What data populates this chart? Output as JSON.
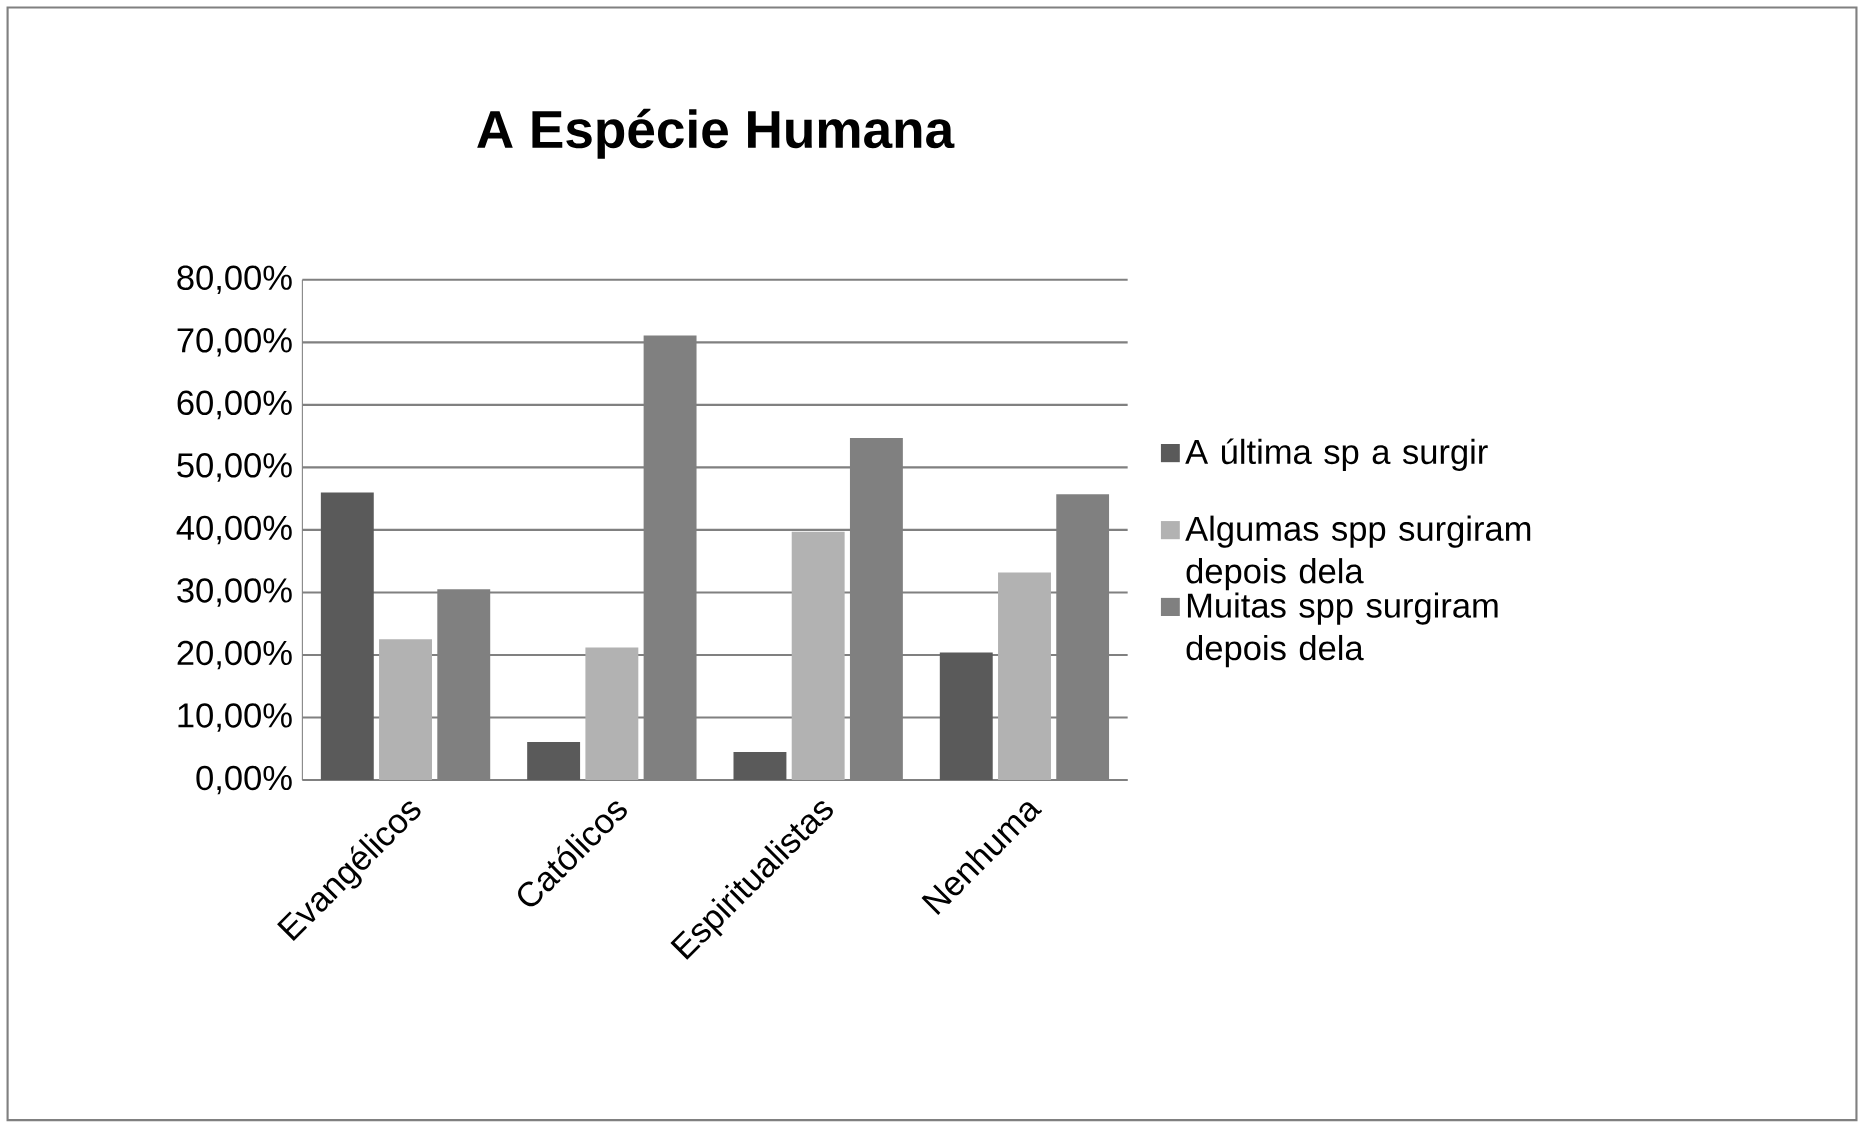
{
  "chart_data": {
    "type": "bar",
    "title": "A Espécie Humana",
    "categories": [
      "Evangélicos",
      "Católicos",
      "Espiritualistas",
      "Nenhuma"
    ],
    "series": [
      {
        "name": "A última sp a surgir",
        "color": "#5a5a5a",
        "values": [
          46.0,
          6.1,
          4.5,
          20.4
        ]
      },
      {
        "name": "Algumas spp surgiram depois dela",
        "color": "#b2b2b2",
        "values": [
          22.5,
          21.2,
          39.7,
          33.2
        ]
      },
      {
        "name": "Muitas spp surgiram depois dela",
        "color": "#808080",
        "values": [
          30.5,
          71.1,
          54.7,
          45.7
        ]
      }
    ],
    "ylim": [
      0,
      80
    ],
    "yticks": [
      {
        "value": 0,
        "label": "0,00%"
      },
      {
        "value": 10,
        "label": "10,00%"
      },
      {
        "value": 20,
        "label": "20,00%"
      },
      {
        "value": 30,
        "label": "30,00%"
      },
      {
        "value": 40,
        "label": "40,00%"
      },
      {
        "value": 50,
        "label": "50,00%"
      },
      {
        "value": 60,
        "label": "60,00%"
      },
      {
        "value": 70,
        "label": "70,00%"
      },
      {
        "value": 80,
        "label": "80,00%"
      }
    ],
    "grid": "y",
    "legend": "right"
  }
}
